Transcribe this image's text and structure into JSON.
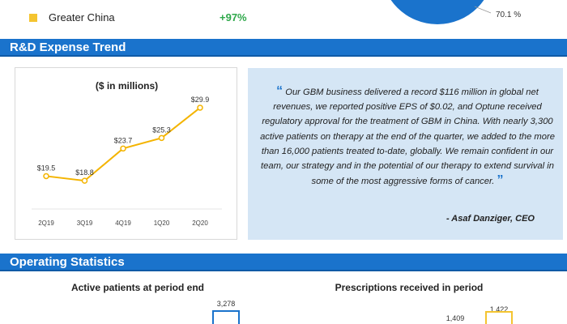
{
  "top_legend": {
    "region": "Greater China",
    "region_color": "#f4c430",
    "growth": "+97%",
    "growth_color": "#2ea84a",
    "pie_label": "70.1 %",
    "pie_color": "#1a73cc"
  },
  "sections": {
    "rd_title": "R&D Expense Trend",
    "ops_title": "Operating Statistics"
  },
  "chart_data": {
    "type": "line",
    "title": "($ in millions)",
    "categories": [
      "2Q19",
      "3Q19",
      "4Q19",
      "1Q20",
      "2Q20"
    ],
    "values": [
      19.5,
      18.8,
      23.7,
      25.3,
      29.9
    ],
    "labels": [
      "$19.5",
      "$18.8",
      "$23.7",
      "$25.3",
      "$29.9"
    ],
    "color": "#f4b400",
    "ylim": [
      15,
      31
    ]
  },
  "quote": {
    "open_mark": "“",
    "text": "Our GBM business delivered a record $116 million in global net revenues, we reported positive EPS of $0.02, and Optune received regulatory approval for the treatment of GBM in China. With nearly 3,300 active patients on therapy at the end of the quarter, we added to the more than 16,000 patients treated to-date, globally. We remain confident in our team, our strategy and in the potential of our therapy to extend survival in some of the most aggressive forms of cancer.",
    "close_mark": "”",
    "author": "- Asaf Danziger, CEO"
  },
  "operating_stats": {
    "active_title": "Active patients at period end",
    "active_value": "3,278",
    "rx_title": "Prescriptions received in period",
    "rx_value_prev": "1,409",
    "rx_value_curr": "1,422"
  }
}
